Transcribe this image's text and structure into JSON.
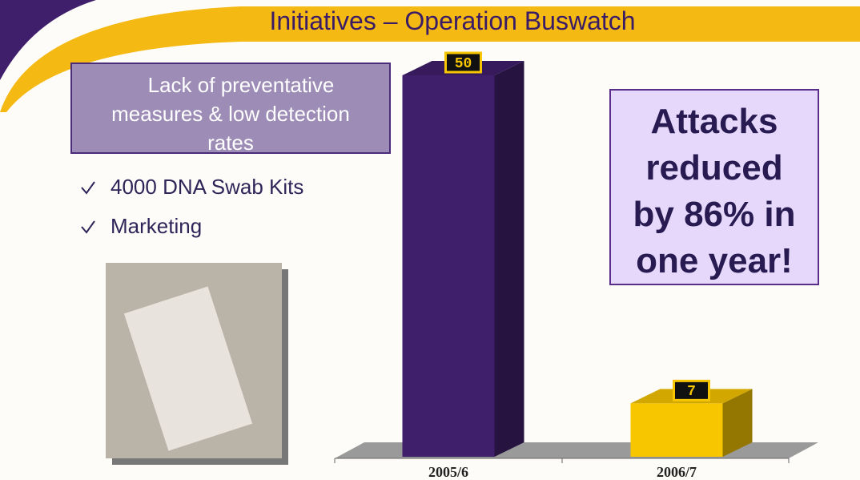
{
  "title": "Initiatives – Operation Buswatch",
  "problem": "Lack of preventative measures & low detection rates",
  "bullets": [
    "4000 DNA Swab Kits",
    "Marketing"
  ],
  "callout": "Attacks reduced by 86% in one year!",
  "chart_data": {
    "type": "bar",
    "categories": [
      "2005/6",
      "2006/7"
    ],
    "values": [
      50,
      7
    ],
    "colors": [
      "#3f1f6b",
      "#f7c600"
    ]
  }
}
